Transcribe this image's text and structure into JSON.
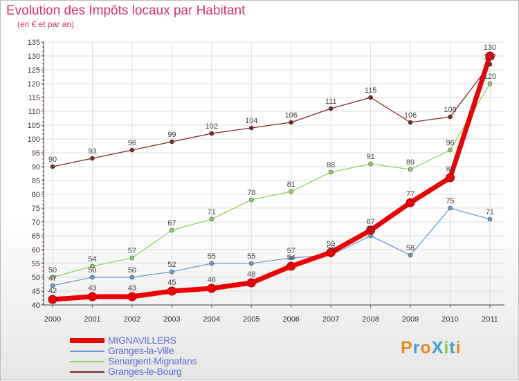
{
  "title": "Evolution des Impôts locaux par Habitant",
  "subtitle": "(en € et par an)",
  "logo": "ProXiti",
  "chart_data": {
    "type": "line",
    "x": [
      "2000",
      "2001",
      "2002",
      "2003",
      "2004",
      "2005",
      "2006",
      "2007",
      "2008",
      "2009",
      "2010",
      "2011"
    ],
    "ylim": [
      40,
      135
    ],
    "yticks": [
      40,
      45,
      50,
      55,
      60,
      65,
      70,
      75,
      80,
      85,
      90,
      95,
      100,
      105,
      110,
      115,
      120,
      125,
      130,
      135
    ],
    "grid": true,
    "series": [
      {
        "name": "Granges-le-Bourg",
        "color": "#7a2828",
        "width": 1.3,
        "values": [
          90,
          93,
          96,
          99,
          102,
          104,
          106,
          111,
          115,
          106,
          108,
          127
        ],
        "labels": [
          "90",
          "93",
          "96",
          "99",
          "102",
          "104",
          "106",
          "111",
          "115",
          "106",
          "108",
          "127"
        ]
      },
      {
        "name": "Senargent-Mignafans",
        "color": "#90d460",
        "width": 1.3,
        "values": [
          50,
          54,
          57,
          67,
          71,
          78,
          81,
          88,
          91,
          89,
          96,
          120
        ],
        "labels": [
          "50",
          "54",
          "57",
          "67",
          "71",
          "78",
          "81",
          "88",
          "91",
          "89",
          "96",
          "120"
        ]
      },
      {
        "name": "Granges-la-Ville",
        "color": "#6a9ccc",
        "width": 1.3,
        "values": [
          47,
          50,
          50,
          52,
          55,
          55,
          57,
          58,
          65,
          58,
          75,
          71
        ],
        "labels": [
          "47",
          "50",
          "50",
          "52",
          "55",
          "55",
          "57",
          "58",
          "65",
          "58",
          "75",
          "71"
        ]
      },
      {
        "name": "MIGNAVILLERS",
        "color": "#ee0000",
        "width": 7,
        "values": [
          42,
          43,
          43,
          45,
          46,
          48,
          54,
          59,
          67,
          77,
          86,
          130
        ],
        "labels": [
          "42",
          "43",
          "43",
          "45",
          "46",
          "48",
          "54",
          "59",
          "67",
          "77",
          "86",
          "130"
        ]
      }
    ],
    "legend": [
      "MIGNAVILLERS",
      "Granges-la-Ville",
      "Senargent-Mignafans",
      "Granges-le-Bourg"
    ]
  }
}
